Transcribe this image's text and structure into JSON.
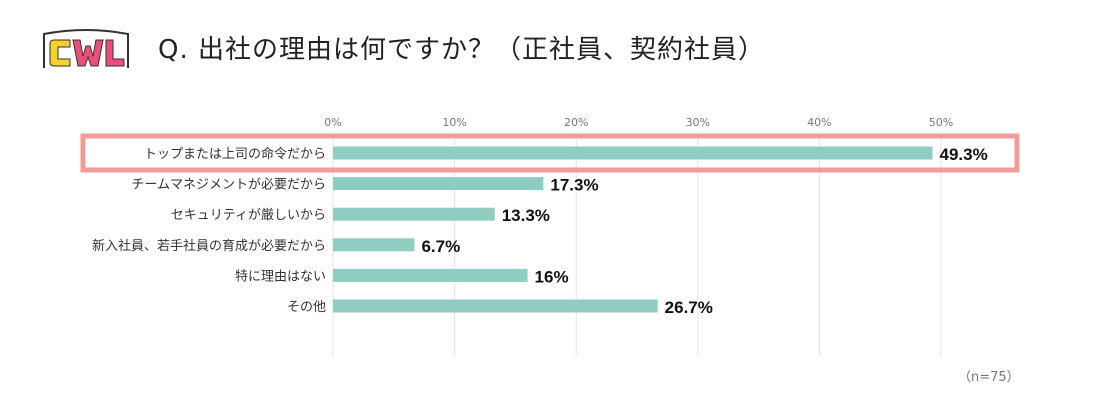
{
  "logo_text": "CWL",
  "title": "Q. 出社の理由は何ですか？（正社員、契約社員）",
  "note": "（n=75）",
  "colors": {
    "bar": "#8ecdc0",
    "highlight": "#f29c98",
    "grid": "#e3e3e3",
    "logo_yellow": "#f5d22e",
    "logo_pink": "#ea4f7a",
    "logo_outline": "#333333"
  },
  "chart_data": {
    "type": "bar",
    "orientation": "horizontal",
    "xlim": [
      0,
      50
    ],
    "xticks": [
      "0%",
      "10%",
      "20%",
      "30%",
      "40%",
      "50%"
    ],
    "xtick_values": [
      0,
      10,
      20,
      30,
      40,
      50
    ],
    "categories": [
      "トップまたは上司の命令だから",
      "チームマネジメントが必要だから",
      "セキュリティが厳しいから",
      "新入社員、若手社員の育成が必要だから",
      "特に理由はない",
      "その他"
    ],
    "values": [
      49.3,
      17.3,
      13.3,
      6.7,
      16,
      26.7
    ],
    "value_labels": [
      "49.3%",
      "17.3%",
      "13.3%",
      "6.7%",
      "16%",
      "26.7%"
    ],
    "highlighted_category": "トップまたは上司の命令だから",
    "grid": true,
    "xlabel": "",
    "ylabel": ""
  }
}
